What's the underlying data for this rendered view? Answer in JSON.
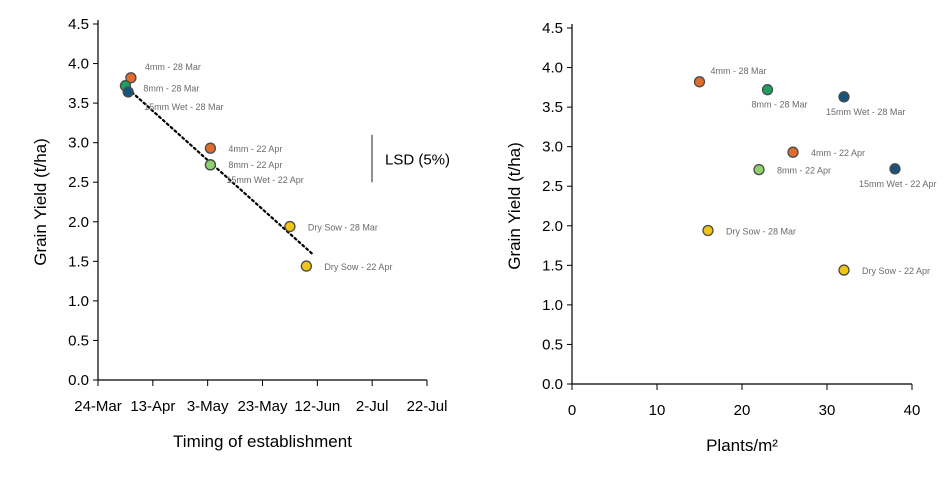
{
  "chart_data": [
    {
      "type": "scatter",
      "xlabel": "Timing of establishment",
      "ylabel": "Grain Yield (t/ha)",
      "x_ticks": [
        "24-Mar",
        "13-Apr",
        "3-May",
        "23-May",
        "12-Jun",
        "2-Jul",
        "22-Jul"
      ],
      "y_ticks": [
        "0.0",
        "0.5",
        "1.0",
        "1.5",
        "2.0",
        "2.5",
        "3.0",
        "3.5",
        "4.0",
        "4.5"
      ],
      "xlim": [
        "24-Mar",
        "22-Jul"
      ],
      "ylim": [
        0,
        4.5
      ],
      "grid": false,
      "annotation": "LSD (5%)",
      "lsd_range": [
        2.5,
        3.1
      ],
      "trendline": {
        "style": "dotted",
        "from": {
          "x": "4-Apr",
          "y": 3.68
        },
        "to": {
          "x": "10-Jun",
          "y": 1.6
        }
      },
      "points": [
        {
          "label": "4mm - 28 Mar",
          "x": "5-Apr",
          "y": 3.82,
          "color": "#e06c2e"
        },
        {
          "label": "8mm - 28 Mar",
          "x": "3-Apr",
          "y": 3.72,
          "color": "#1f9e61"
        },
        {
          "label": "15mm Wet - 28 Mar",
          "x": "4-Apr",
          "y": 3.64,
          "color": "#17547a"
        },
        {
          "label": "4mm - 22 Apr",
          "x": "4-May",
          "y": 2.93,
          "color": "#e06c2e"
        },
        {
          "label": "8mm - 22 Apr",
          "x": "4-May",
          "y": 2.72,
          "color": "#8fd16a"
        },
        {
          "label": "15mm Wet - 22 Apr",
          "x": "4-May",
          "y": 2.72,
          "color": "#8fd16a"
        },
        {
          "label": "Dry Sow - 28 Mar",
          "x": "2-Jun",
          "y": 1.94,
          "color": "#f2c418"
        },
        {
          "label": "Dry Sow - 22 Apr",
          "x": "8-Jun",
          "y": 1.44,
          "color": "#f2c418"
        }
      ]
    },
    {
      "type": "scatter",
      "xlabel": "Plants/m²",
      "ylabel": "Grain Yield (t/ha)",
      "x_ticks": [
        "0",
        "10",
        "20",
        "30",
        "40"
      ],
      "y_ticks": [
        "0.0",
        "0.5",
        "1.0",
        "1.5",
        "2.0",
        "2.5",
        "3.0",
        "3.5",
        "4.0",
        "4.5"
      ],
      "xlim": [
        0,
        40
      ],
      "ylim": [
        0,
        4.5
      ],
      "grid": false,
      "points": [
        {
          "label": "4mm - 28 Mar",
          "x": 15,
          "y": 3.82,
          "color": "#e06c2e"
        },
        {
          "label": "8mm - 28 Mar",
          "x": 23,
          "y": 3.72,
          "color": "#1f9e61"
        },
        {
          "label": "15mm Wet - 28 Mar",
          "x": 32,
          "y": 3.63,
          "color": "#17547a"
        },
        {
          "label": "4mm - 22 Apr",
          "x": 26,
          "y": 2.93,
          "color": "#e06c2e"
        },
        {
          "label": "8mm - 22 Apr",
          "x": 22,
          "y": 2.71,
          "color": "#8fd16a"
        },
        {
          "label": "15mm Wet - 22 Apr",
          "x": 38,
          "y": 2.72,
          "color": "#17547a"
        },
        {
          "label": "Dry Sow - 28 Mar",
          "x": 16,
          "y": 1.94,
          "color": "#f2c418"
        },
        {
          "label": "Dry Sow - 22 Apr",
          "x": 32,
          "y": 1.44,
          "color": "#f2c418"
        }
      ]
    }
  ]
}
